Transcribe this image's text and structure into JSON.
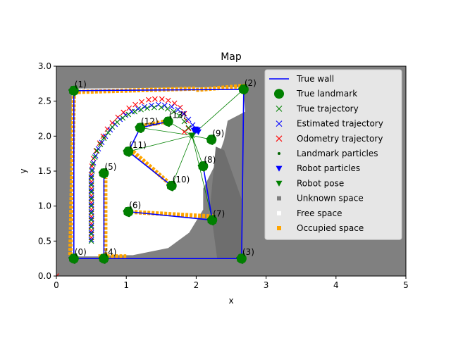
{
  "chart_data": {
    "type": "scatter",
    "title": "Map",
    "xlabel": "x",
    "ylabel": "y",
    "xlim": [
      0,
      5
    ],
    "ylim": [
      0,
      3
    ],
    "xticks": [
      "0",
      "1",
      "2",
      "3",
      "4",
      "5"
    ],
    "yticks": [
      "0.0",
      "0.5",
      "1.0",
      "1.5",
      "2.0",
      "2.5",
      "3.0"
    ],
    "legend_position": "top-right",
    "colors": {
      "true_wall": "#0000ff",
      "landmark": "#008000",
      "true_trajectory": "#008000",
      "estimated_trajectory": "#0000ff",
      "odometry_trajectory": "#ff0000",
      "unknown_space": "#808080",
      "free_space": "#ffffff",
      "occupied_space": "#ffa500"
    },
    "legend": [
      {
        "label": "True wall",
        "marker": "line",
        "color": "#0000ff"
      },
      {
        "label": "True landmark",
        "marker": "big-circle",
        "color": "#008000"
      },
      {
        "label": "True trajectory",
        "marker": "x",
        "color": "#008000"
      },
      {
        "label": "Estimated trajectory",
        "marker": "x",
        "color": "#0000ff"
      },
      {
        "label": "Odometry trajectory",
        "marker": "x",
        "color": "#ff0000"
      },
      {
        "label": "Landmark particles",
        "marker": "small-dot",
        "color": "#006400"
      },
      {
        "label": "Robot particles",
        "marker": "triangle-down",
        "color": "#0000ff"
      },
      {
        "label": "Robot pose",
        "marker": "triangle-down",
        "color": "#008000"
      },
      {
        "label": "Unknown space",
        "marker": "square",
        "color": "#808080"
      },
      {
        "label": "Free space",
        "marker": "square",
        "color": "#ffffff"
      },
      {
        "label": "Occupied space",
        "marker": "square",
        "color": "#ffa500"
      }
    ],
    "landmarks": [
      {
        "id": "(0)",
        "x": 0.25,
        "y": 0.25
      },
      {
        "id": "(1)",
        "x": 0.25,
        "y": 2.65
      },
      {
        "id": "(2)",
        "x": 2.68,
        "y": 2.67
      },
      {
        "id": "(3)",
        "x": 2.65,
        "y": 0.25
      },
      {
        "id": "(4)",
        "x": 0.68,
        "y": 0.25
      },
      {
        "id": "(5)",
        "x": 0.68,
        "y": 1.47
      },
      {
        "id": "(6)",
        "x": 1.03,
        "y": 0.92
      },
      {
        "id": "(7)",
        "x": 2.23,
        "y": 0.8
      },
      {
        "id": "(8)",
        "x": 2.1,
        "y": 1.57
      },
      {
        "id": "(9)",
        "x": 2.22,
        "y": 1.95
      },
      {
        "id": "(10)",
        "x": 1.65,
        "y": 1.29
      },
      {
        "id": "(11)",
        "x": 1.03,
        "y": 1.78
      },
      {
        "id": "(12)",
        "x": 1.2,
        "y": 2.12
      },
      {
        "id": "(13)",
        "x": 1.6,
        "y": 2.21
      }
    ],
    "walls": [
      [
        [
          0.25,
          0.25
        ],
        [
          0.25,
          2.65
        ],
        [
          2.68,
          2.67
        ],
        [
          2.65,
          0.25
        ],
        [
          0.25,
          0.25
        ]
      ],
      [
        [
          0.68,
          0.25
        ],
        [
          0.68,
          1.47
        ]
      ],
      [
        [
          1.03,
          0.92
        ],
        [
          2.23,
          0.8
        ]
      ],
      [
        [
          2.23,
          0.8
        ],
        [
          2.1,
          1.57
        ]
      ],
      [
        [
          1.03,
          1.78
        ],
        [
          1.65,
          1.29
        ]
      ],
      [
        [
          1.03,
          1.78
        ],
        [
          1.2,
          2.12
        ]
      ],
      [
        [
          1.2,
          2.12
        ],
        [
          1.6,
          2.21
        ]
      ]
    ],
    "robot_pose": {
      "x": 1.94,
      "y": 2.01
    },
    "robot_particles": {
      "x": 2.0,
      "y": 2.08
    },
    "observation_rays": [
      {
        "from": [
          1.94,
          2.01
        ],
        "to": [
          1.2,
          2.12
        ]
      },
      {
        "from": [
          1.94,
          2.01
        ],
        "to": [
          1.6,
          2.21
        ]
      },
      {
        "from": [
          1.94,
          2.01
        ],
        "to": [
          2.22,
          1.95
        ]
      },
      {
        "from": [
          1.94,
          2.01
        ],
        "to": [
          2.1,
          1.57
        ]
      },
      {
        "from": [
          1.94,
          2.01
        ],
        "to": [
          1.03,
          1.78
        ]
      },
      {
        "from": [
          1.94,
          2.01
        ],
        "to": [
          1.65,
          1.29
        ]
      },
      {
        "from": [
          1.94,
          2.01
        ],
        "to": [
          2.23,
          0.8
        ]
      },
      {
        "from": [
          1.94,
          2.01
        ],
        "to": [
          2.68,
          2.67
        ]
      }
    ],
    "true_trajectory": {
      "x": [
        0.5,
        0.5,
        0.5,
        0.5,
        0.5,
        0.5,
        0.5,
        0.5,
        0.5,
        0.5,
        0.51,
        0.52,
        0.55,
        0.58,
        0.63,
        0.68,
        0.74,
        0.8,
        0.87,
        0.95,
        1.03,
        1.12,
        1.21,
        1.3,
        1.4,
        1.5,
        1.59,
        1.68,
        1.76,
        1.83,
        1.89,
        1.94
      ],
      "y": [
        0.5,
        0.6,
        0.7,
        0.8,
        0.9,
        1.0,
        1.1,
        1.2,
        1.3,
        1.4,
        1.5,
        1.6,
        1.7,
        1.79,
        1.88,
        1.97,
        2.05,
        2.13,
        2.2,
        2.26,
        2.31,
        2.35,
        2.38,
        2.4,
        2.41,
        2.41,
        2.39,
        2.35,
        2.29,
        2.21,
        2.12,
        2.01
      ]
    },
    "estimated_trajectory": {
      "x": [
        0.5,
        0.5,
        0.5,
        0.5,
        0.5,
        0.5,
        0.5,
        0.5,
        0.5,
        0.5,
        0.51,
        0.53,
        0.56,
        0.6,
        0.65,
        0.7,
        0.77,
        0.84,
        0.91,
        0.99,
        1.08,
        1.17,
        1.26,
        1.36,
        1.46,
        1.55,
        1.65,
        1.74,
        1.82,
        1.89,
        1.95,
        2.0
      ],
      "y": [
        0.52,
        0.62,
        0.72,
        0.82,
        0.92,
        1.02,
        1.12,
        1.22,
        1.32,
        1.42,
        1.52,
        1.62,
        1.72,
        1.82,
        1.91,
        2.0,
        2.09,
        2.17,
        2.24,
        2.3,
        2.35,
        2.39,
        2.42,
        2.44,
        2.45,
        2.44,
        2.42,
        2.38,
        2.32,
        2.24,
        2.16,
        2.08
      ]
    },
    "odometry_trajectory": {
      "x": [
        0.5,
        0.5,
        0.5,
        0.5,
        0.5,
        0.5,
        0.5,
        0.5,
        0.5,
        0.5,
        0.51,
        0.53,
        0.57,
        0.62,
        0.67,
        0.73,
        0.8,
        0.88,
        0.96,
        1.04,
        1.13,
        1.22,
        1.32,
        1.41,
        1.51,
        1.6,
        1.69,
        1.77,
        1.83,
        1.87,
        1.89,
        1.83
      ],
      "y": [
        0.55,
        0.65,
        0.75,
        0.85,
        0.95,
        1.05,
        1.15,
        1.25,
        1.35,
        1.45,
        1.57,
        1.68,
        1.79,
        1.9,
        2.0,
        2.1,
        2.19,
        2.27,
        2.34,
        2.4,
        2.45,
        2.49,
        2.52,
        2.53,
        2.53,
        2.51,
        2.47,
        2.41,
        2.32,
        2.22,
        2.11,
        2.06
      ]
    },
    "odometry_origin": {
      "x": 0.0,
      "y": 0.0
    },
    "grid_occupancy": {
      "unknown_regions": [
        [
          [
            0,
            0
          ],
          [
            5,
            0
          ],
          [
            5,
            3
          ],
          [
            0,
            3
          ]
        ]
      ],
      "free_regions": [
        [
          [
            0.22,
            0.28
          ],
          [
            0.22,
            2.68
          ],
          [
            2.67,
            2.7
          ],
          [
            2.7,
            2.35
          ],
          [
            2.45,
            2.22
          ],
          [
            2.4,
            1.95
          ],
          [
            2.3,
            1.65
          ],
          [
            2.1,
            1.25
          ],
          [
            2.1,
            0.95
          ],
          [
            1.9,
            0.62
          ],
          [
            1.6,
            0.4
          ],
          [
            1.2,
            0.32
          ],
          [
            1.1,
            0.3
          ],
          [
            0.8,
            0.3
          ],
          [
            0.7,
            0.28
          ]
        ],
        [
          [
            0.7,
            0.3
          ],
          [
            1.1,
            0.3
          ],
          [
            1.05,
            0.7
          ],
          [
            0.9,
            0.85
          ],
          [
            0.72,
            0.9
          ]
        ]
      ],
      "occupied_segments": [
        [
          [
            0.25,
            2.63
          ],
          [
            2.0,
            2.68
          ]
        ],
        [
          [
            2.0,
            2.66
          ],
          [
            2.7,
            2.72
          ]
        ],
        [
          [
            0.2,
            0.3
          ],
          [
            0.25,
            2.6
          ]
        ],
        [
          [
            0.7,
            0.3
          ],
          [
            0.7,
            1.4
          ]
        ],
        [
          [
            1.0,
            0.92
          ],
          [
            2.25,
            0.85
          ]
        ],
        [
          [
            0.6,
            0.28
          ],
          [
            1.0,
            0.28
          ]
        ],
        [
          [
            1.05,
            1.82
          ],
          [
            1.7,
            1.25
          ]
        ],
        [
          [
            1.2,
            2.14
          ],
          [
            1.62,
            2.22
          ]
        ]
      ],
      "dark_patch": [
        [
          2.3,
          0.25
        ],
        [
          2.65,
          0.25
        ],
        [
          2.65,
          1.1
        ],
        [
          2.4,
          1.8
        ],
        [
          2.28,
          1.85
        ],
        [
          2.2,
          1.0
        ]
      ]
    }
  }
}
